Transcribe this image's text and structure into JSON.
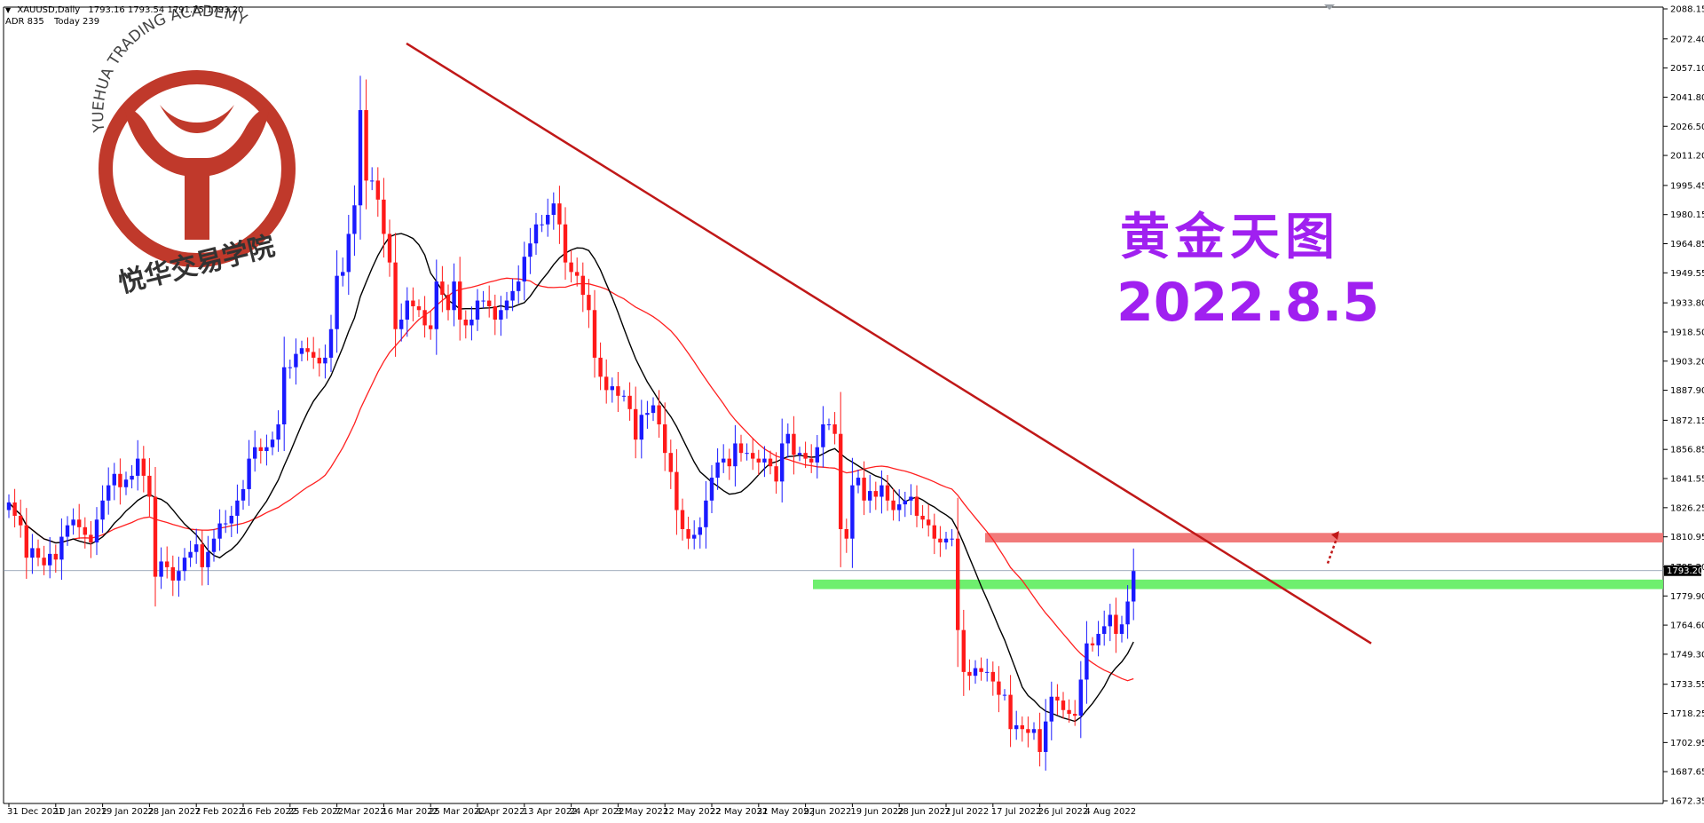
{
  "header": {
    "symbol": "XAUUSD,Daily",
    "ohlc": "1793.16 1793.54 1791.75 1793.20",
    "adr": "ADR 835",
    "today": "Today 239"
  },
  "logo": {
    "text_top": "YUEHUA TRADING ACADEMY",
    "text_bottom": "悦华交易学院",
    "color": "#c0392b"
  },
  "overlay": {
    "title": "黄金天图",
    "date": "2022.8.5",
    "color": "#a020f0"
  },
  "price_label": "1793.20",
  "chart_data": {
    "type": "candlestick",
    "title": "XAUUSD,Daily",
    "ylim": [
      1672.35,
      2088.15
    ],
    "y_ticks": [
      2088.15,
      2072.4,
      2057.1,
      2041.8,
      2026.5,
      2011.2,
      1995.45,
      1980.15,
      1964.85,
      1949.55,
      1933.8,
      1918.5,
      1903.2,
      1887.9,
      1872.15,
      1856.85,
      1841.55,
      1826.25,
      1810.95,
      1795.2,
      1779.9,
      1764.6,
      1749.3,
      1733.55,
      1718.25,
      1702.95,
      1687.65,
      1672.35
    ],
    "x_labels": [
      "31 Dec 2021",
      "10 Jan 2022",
      "19 Jan 2022",
      "28 Jan 2022",
      "7 Feb 2022",
      "16 Feb 2022",
      "25 Feb 2022",
      "7 Mar 2022",
      "16 Mar 2022",
      "25 Mar 2022",
      "4 Apr 2022",
      "13 Apr 2022",
      "24 Apr 2022",
      "3 May 2022",
      "12 May 2022",
      "22 May 2022",
      "31 May 2022",
      "9 Jun 2022",
      "19 Jun 2022",
      "28 Jun 2022",
      "7 Jul 2022",
      "17 Jul 2022",
      "26 Jul 2022",
      "4 Aug 2022"
    ],
    "current_price": 1793.2,
    "closes": [
      1829,
      1822,
      1817,
      1800,
      1805,
      1800,
      1796,
      1802,
      1799,
      1811,
      1817,
      1820,
      1816,
      1812,
      1808,
      1820,
      1830,
      1838,
      1844,
      1837,
      1841,
      1843,
      1852,
      1843,
      1832,
      1790,
      1798,
      1795,
      1788,
      1793,
      1800,
      1803,
      1807,
      1795,
      1803,
      1810,
      1818,
      1818,
      1822,
      1830,
      1836,
      1852,
      1858,
      1856,
      1858,
      1862,
      1870,
      1900,
      1900,
      1907,
      1910,
      1908,
      1905,
      1902,
      1905,
      1920,
      1948,
      1950,
      1970,
      1985,
      2035,
      1998,
      1998,
      1988,
      1970,
      1955,
      1920,
      1925,
      1935,
      1932,
      1930,
      1922,
      1920,
      1945,
      1938,
      1930,
      1945,
      1925,
      1922,
      1925,
      1935,
      1935,
      1932,
      1925,
      1930,
      1935,
      1940,
      1945,
      1958,
      1965,
      1975,
      1975,
      1980,
      1986,
      1975,
      1955,
      1950,
      1948,
      1938,
      1930,
      1905,
      1895,
      1888,
      1890,
      1885,
      1885,
      1878,
      1862,
      1875,
      1876,
      1880,
      1870,
      1855,
      1845,
      1825,
      1815,
      1810,
      1812,
      1816,
      1830,
      1842,
      1850,
      1852,
      1848,
      1860,
      1855,
      1855,
      1852,
      1850,
      1852,
      1848,
      1840,
      1860,
      1865,
      1854,
      1855,
      1852,
      1850,
      1858,
      1870,
      1870,
      1865,
      1815,
      1810,
      1838,
      1842,
      1830,
      1835,
      1832,
      1838,
      1830,
      1825,
      1828,
      1830,
      1832,
      1822,
      1820,
      1817,
      1810,
      1808,
      1810,
      1810,
      1762,
      1740,
      1738,
      1742,
      1740,
      1740,
      1735,
      1728,
      1728,
      1710,
      1712,
      1710,
      1708,
      1710,
      1698,
      1714,
      1727,
      1725,
      1720,
      1718,
      1717,
      1736,
      1755,
      1754,
      1760,
      1764,
      1770,
      1760,
      1765,
      1777,
      1793
    ]
  }
}
